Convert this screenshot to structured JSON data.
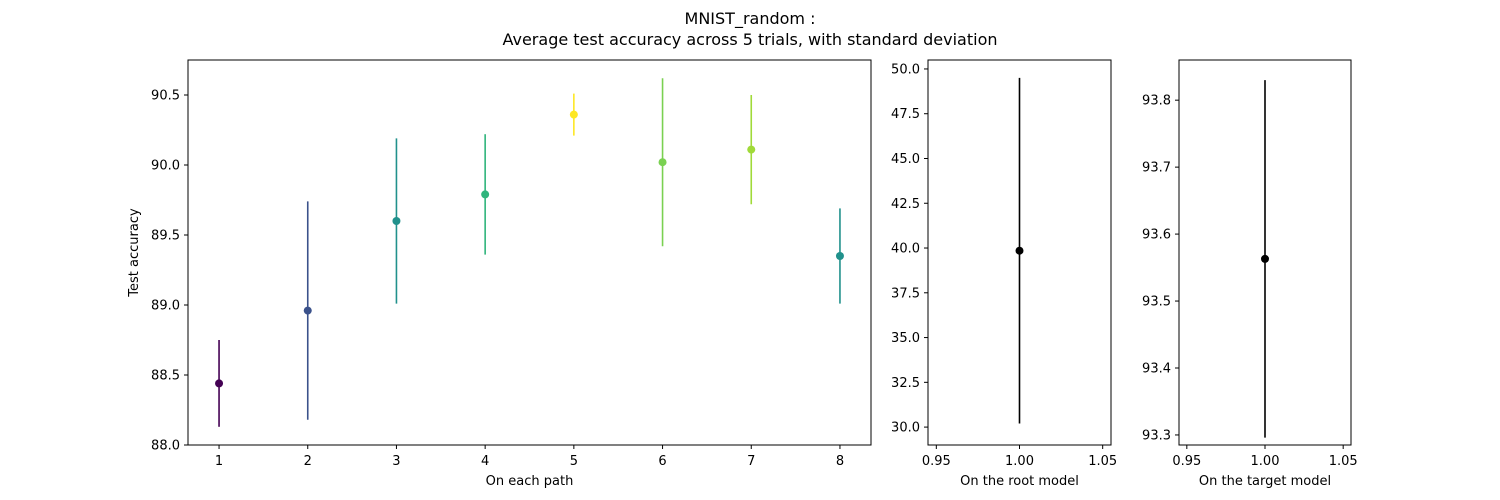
{
  "title_line1": "MNIST_random :",
  "title_line2": "Average test accuracy across 5 trials, with standard deviation",
  "chart_data": [
    {
      "type": "errorbar",
      "xlabel": "On each path",
      "ylabel": "Test accuracy",
      "xlim": [
        0.65,
        8.35
      ],
      "ylim": [
        88.0,
        90.75
      ],
      "xticks": [
        1,
        2,
        3,
        4,
        5,
        6,
        7,
        8
      ],
      "xtick_labels": [
        "1",
        "2",
        "3",
        "4",
        "5",
        "6",
        "7",
        "8"
      ],
      "yticks": [
        88.0,
        88.5,
        89.0,
        89.5,
        90.0,
        90.5
      ],
      "ytick_labels": [
        "88.0",
        "88.5",
        "89.0",
        "89.5",
        "90.0",
        "90.5"
      ],
      "grid": false,
      "points": [
        {
          "x": 1,
          "y": 88.44,
          "yerr": 0.31,
          "color": "#440154"
        },
        {
          "x": 2,
          "y": 88.96,
          "yerr": 0.78,
          "color": "#3b528b"
        },
        {
          "x": 3,
          "y": 89.6,
          "yerr": 0.59,
          "color": "#21918c"
        },
        {
          "x": 4,
          "y": 89.79,
          "yerr": 0.43,
          "color": "#2fb47c"
        },
        {
          "x": 5,
          "y": 90.36,
          "yerr": 0.15,
          "color": "#fde725"
        },
        {
          "x": 6,
          "y": 90.02,
          "yerr": 0.6,
          "color": "#7ad151"
        },
        {
          "x": 7,
          "y": 90.11,
          "yerr": 0.39,
          "color": "#a0da39"
        },
        {
          "x": 8,
          "y": 89.35,
          "yerr": 0.34,
          "color": "#21918c"
        }
      ]
    },
    {
      "type": "errorbar",
      "xlabel": "On the root model",
      "ylabel": "",
      "xlim": [
        0.945,
        1.055
      ],
      "ylim": [
        29.0,
        50.5
      ],
      "xticks": [
        0.95,
        1.0,
        1.05
      ],
      "xtick_labels": [
        "0.95",
        "1.00",
        "1.05"
      ],
      "yticks": [
        30.0,
        32.5,
        35.0,
        37.5,
        40.0,
        42.5,
        45.0,
        47.5,
        50.0
      ],
      "ytick_labels": [
        "30.0",
        "32.5",
        "35.0",
        "37.5",
        "40.0",
        "42.5",
        "45.0",
        "47.5",
        "50.0"
      ],
      "grid": false,
      "points": [
        {
          "x": 1.0,
          "y": 39.85,
          "yerr": 9.65,
          "color": "#000000"
        }
      ]
    },
    {
      "type": "errorbar",
      "xlabel": "On the target model",
      "ylabel": "",
      "xlim": [
        0.945,
        1.055
      ],
      "ylim": [
        93.285,
        93.86
      ],
      "xticks": [
        0.95,
        1.0,
        1.05
      ],
      "xtick_labels": [
        "0.95",
        "1.00",
        "1.05"
      ],
      "yticks": [
        93.3,
        93.4,
        93.5,
        93.6,
        93.7,
        93.8
      ],
      "ytick_labels": [
        "93.3",
        "93.4",
        "93.5",
        "93.6",
        "93.7",
        "93.8"
      ],
      "grid": false,
      "points": [
        {
          "x": 1.0,
          "y": 93.563,
          "yerr": 0.267,
          "color": "#000000"
        }
      ]
    }
  ]
}
